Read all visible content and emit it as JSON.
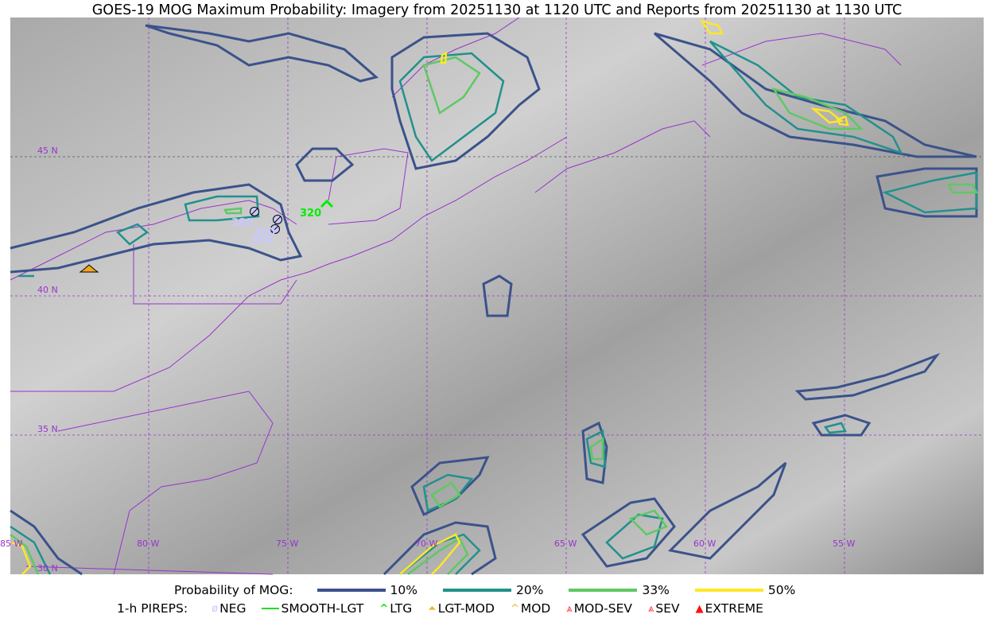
{
  "title": "GOES-19 MOG Maximum Probability: Imagery from 20251130 at 1120 UTC and Reports from 20251130 at 1130 UTC",
  "map": {
    "lat_labels": [
      "45 N",
      "40 N",
      "35 N",
      "30 N"
    ],
    "lon_labels": [
      "85 W",
      "80 W",
      "75 W",
      "70 W",
      "65 W",
      "60 W",
      "55 W"
    ],
    "gridline_color": "#9933cc",
    "border_color": "#9933cc"
  },
  "reports": [
    {
      "type": "NEG",
      "label": "380",
      "color": "#c8c8ff"
    },
    {
      "type": "NEG",
      "label": "330",
      "color": "#c8c8ff"
    },
    {
      "type": "NEG",
      "label": "350",
      "color": "#c8c8ff"
    },
    {
      "type": "LTG",
      "label": "320",
      "color": "#00ee00"
    },
    {
      "type": "LGT-MOD",
      "label": "",
      "color": "#f0a820"
    }
  ],
  "legend": {
    "mog_label": "Probability of MOG:",
    "levels": [
      {
        "label": "10%",
        "color": "#3b528b"
      },
      {
        "label": "20%",
        "color": "#21918c"
      },
      {
        "label": "33%",
        "color": "#5ec962"
      },
      {
        "label": "50%",
        "color": "#fde725"
      }
    ],
    "pirep_label": "1-h PIREPS:",
    "pireps": [
      {
        "label": "NEG",
        "icon": "neg-icon",
        "color": "#c8c8ff"
      },
      {
        "label": "SMOOTH-LGT",
        "icon": "smooth-lgt-icon",
        "color": "#22dd22"
      },
      {
        "label": "LTG",
        "icon": "ltg-icon",
        "color": "#00ee00"
      },
      {
        "label": "LGT-MOD",
        "icon": "lgt-mod-icon",
        "color": "#f5b223"
      },
      {
        "label": "MOD",
        "icon": "mod-icon",
        "color": "#f5b223"
      },
      {
        "label": "MOD-SEV",
        "icon": "mod-sev-icon",
        "color": "#ff3030"
      },
      {
        "label": "SEV",
        "icon": "sev-icon",
        "color": "#ff3030"
      },
      {
        "label": "EXTREME",
        "icon": "extreme-icon",
        "color": "#ff1010"
      }
    ]
  }
}
